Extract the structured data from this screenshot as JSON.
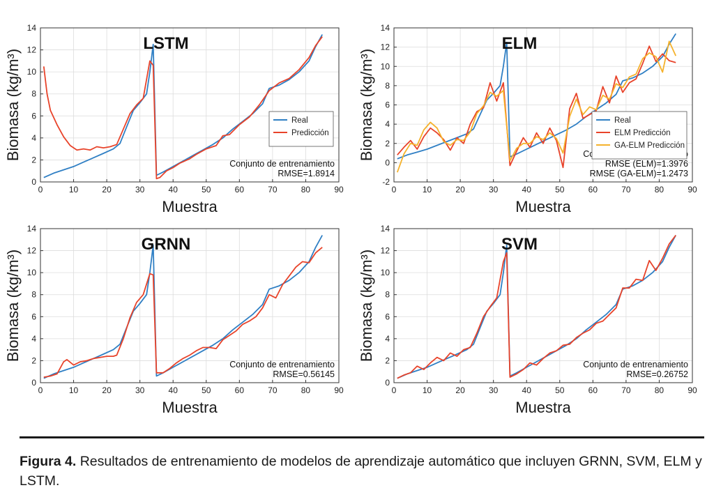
{
  "caption": {
    "label": "Figura 4.",
    "text": "Resultados de entrenamiento de modelos de aprendizaje automático que incluyen GRNN, SVM, ELM y LSTM."
  },
  "chart_data": [
    {
      "type": "line",
      "title": "LSTM",
      "xlabel": "Muestra",
      "ylabel": "Biomasa (kg/m³)",
      "xlim": [
        0,
        90
      ],
      "ylim": [
        0,
        14
      ],
      "xticks": [
        0,
        10,
        20,
        30,
        40,
        50,
        60,
        70,
        80,
        90
      ],
      "yticks": [
        0,
        2,
        4,
        6,
        8,
        10,
        12,
        14
      ],
      "grid": true,
      "legend": "middle-right",
      "annotations": [
        "Conjunto de entrenamiento",
        "RMSE=1.8914"
      ],
      "series": [
        {
          "name": "Real",
          "color": "#2f7fc4",
          "x": [
            1,
            4,
            7,
            10,
            13,
            16,
            19,
            22,
            24,
            26,
            28,
            30,
            32,
            33,
            34,
            35,
            37,
            40,
            43,
            46,
            49,
            52,
            55,
            58,
            61,
            64,
            67,
            69,
            72,
            75,
            78,
            81,
            83,
            85
          ],
          "y": [
            0.4,
            0.8,
            1.1,
            1.4,
            1.8,
            2.2,
            2.6,
            3.0,
            3.5,
            5.0,
            6.5,
            7.2,
            8.0,
            10.0,
            12.5,
            0.6,
            0.9,
            1.4,
            1.9,
            2.4,
            2.9,
            3.4,
            4.0,
            4.8,
            5.5,
            6.2,
            7.1,
            8.5,
            8.8,
            9.3,
            10.0,
            11.0,
            12.3,
            13.4
          ]
        },
        {
          "name": "Predicción",
          "color": "#e8432a",
          "x": [
            1,
            2,
            3,
            5,
            7,
            9,
            11,
            13,
            15,
            17,
            19,
            21,
            23,
            25,
            27,
            29,
            31,
            33,
            34,
            35,
            36,
            38,
            40,
            42,
            45,
            47,
            50,
            53,
            55,
            57,
            60,
            63,
            66,
            69,
            72,
            75,
            78,
            81,
            83,
            85
          ],
          "y": [
            10.5,
            8.0,
            6.5,
            5.2,
            4.1,
            3.3,
            2.9,
            3.0,
            2.9,
            3.2,
            3.1,
            3.2,
            3.4,
            4.8,
            6.2,
            7.0,
            7.6,
            11.0,
            10.6,
            0.3,
            0.4,
            1.0,
            1.3,
            1.7,
            2.1,
            2.5,
            3.0,
            3.3,
            4.2,
            4.3,
            5.2,
            5.9,
            7.0,
            8.3,
            9.0,
            9.4,
            10.2,
            11.3,
            12.4,
            13.2
          ]
        }
      ]
    },
    {
      "type": "line",
      "title": "ELM",
      "xlabel": "Muestra",
      "ylabel": "Biomasa (kg/m³)",
      "xlim": [
        0,
        90
      ],
      "ylim": [
        -2,
        14
      ],
      "xticks": [
        0,
        10,
        20,
        30,
        40,
        50,
        60,
        70,
        80,
        90
      ],
      "yticks": [
        -2,
        0,
        2,
        4,
        6,
        8,
        10,
        12,
        14
      ],
      "grid": true,
      "legend": "middle-right",
      "annotations": [
        "Conjunto de entrenamiento",
        "RMSE (ELM)=1.3976",
        "RMSE (GA-ELM)=1.2473"
      ],
      "series": [
        {
          "name": "Real",
          "color": "#2f7fc4",
          "x": [
            1,
            4,
            7,
            10,
            13,
            16,
            19,
            22,
            24,
            26,
            28,
            30,
            32,
            33,
            34,
            35,
            37,
            40,
            43,
            46,
            49,
            52,
            55,
            58,
            61,
            64,
            67,
            69,
            72,
            75,
            78,
            81,
            83,
            85
          ],
          "y": [
            0.4,
            0.8,
            1.1,
            1.4,
            1.8,
            2.2,
            2.6,
            3.0,
            3.5,
            5.0,
            6.5,
            7.2,
            8.0,
            10.0,
            12.5,
            0.6,
            0.9,
            1.4,
            1.9,
            2.4,
            2.9,
            3.4,
            4.0,
            4.8,
            5.5,
            6.2,
            7.1,
            8.5,
            8.8,
            9.3,
            10.0,
            11.0,
            12.3,
            13.4
          ]
        },
        {
          "name": "ELM Predicción",
          "color": "#e8432a",
          "x": [
            1,
            3,
            5,
            7,
            9,
            11,
            13,
            15,
            17,
            19,
            21,
            23,
            25,
            27,
            29,
            31,
            33,
            35,
            37,
            39,
            41,
            43,
            45,
            47,
            49,
            51,
            53,
            55,
            57,
            59,
            61,
            63,
            65,
            67,
            69,
            71,
            73,
            75,
            77,
            79,
            81,
            83,
            85
          ],
          "y": [
            0.8,
            1.6,
            2.3,
            1.4,
            2.7,
            3.6,
            3.1,
            2.4,
            1.3,
            2.6,
            2.0,
            4.0,
            5.3,
            5.7,
            8.3,
            6.4,
            8.3,
            -0.3,
            1.2,
            2.6,
            1.6,
            3.1,
            2.0,
            3.6,
            2.3,
            -0.5,
            5.6,
            7.2,
            4.6,
            5.0,
            5.4,
            7.9,
            6.2,
            9.0,
            7.3,
            8.3,
            8.7,
            10.3,
            12.1,
            10.5,
            11.3,
            10.6,
            10.4
          ]
        },
        {
          "name": "GA-ELM Predicción",
          "color": "#f5b22c",
          "x": [
            1,
            3,
            5,
            7,
            9,
            11,
            13,
            15,
            17,
            19,
            21,
            23,
            25,
            27,
            29,
            31,
            33,
            35,
            37,
            39,
            41,
            43,
            45,
            47,
            49,
            51,
            53,
            55,
            57,
            59,
            61,
            63,
            65,
            67,
            69,
            71,
            73,
            75,
            77,
            79,
            81,
            83,
            85
          ],
          "y": [
            -1.0,
            0.9,
            2.0,
            1.8,
            3.4,
            4.2,
            3.6,
            2.2,
            1.8,
            2.4,
            2.3,
            3.2,
            5.1,
            5.9,
            7.3,
            6.9,
            7.5,
            0.2,
            1.5,
            2.0,
            2.0,
            2.7,
            2.4,
            3.1,
            2.5,
            1.0,
            4.8,
            6.6,
            5.0,
            5.8,
            5.5,
            7.0,
            6.6,
            8.2,
            7.8,
            8.9,
            9.2,
            10.8,
            11.4,
            11.0,
            9.4,
            12.6,
            11.1
          ]
        }
      ]
    },
    {
      "type": "line",
      "title": "GRNN",
      "xlabel": "Muestra",
      "ylabel": "Biomasa (kg/m³)",
      "xlim": [
        0,
        90
      ],
      "ylim": [
        0,
        14
      ],
      "xticks": [
        0,
        10,
        20,
        30,
        40,
        50,
        60,
        70,
        80,
        90
      ],
      "yticks": [
        0,
        2,
        4,
        6,
        8,
        10,
        12,
        14
      ],
      "grid": true,
      "annotations": [
        "Conjunto de entrenamiento",
        "RMSE=0.56145"
      ],
      "series": [
        {
          "name": "Real",
          "color": "#2f7fc4",
          "x": [
            1,
            4,
            7,
            10,
            13,
            16,
            19,
            22,
            24,
            26,
            28,
            30,
            32,
            33,
            34,
            35,
            37,
            40,
            43,
            46,
            49,
            52,
            55,
            58,
            61,
            64,
            67,
            69,
            72,
            75,
            78,
            81,
            83,
            85
          ],
          "y": [
            0.4,
            0.8,
            1.1,
            1.4,
            1.8,
            2.2,
            2.6,
            3.0,
            3.5,
            5.0,
            6.5,
            7.2,
            8.0,
            10.0,
            12.5,
            0.6,
            0.9,
            1.4,
            1.9,
            2.4,
            2.9,
            3.4,
            4.0,
            4.8,
            5.5,
            6.2,
            7.1,
            8.5,
            8.8,
            9.3,
            10.0,
            11.0,
            12.3,
            13.4
          ]
        },
        {
          "name": "Predicción",
          "color": "#e8432a",
          "x": [
            1,
            3,
            5,
            7,
            8,
            10,
            12,
            14,
            16,
            18,
            20,
            22,
            23,
            25,
            27,
            29,
            31,
            33,
            34,
            35,
            37,
            39,
            41,
            43,
            45,
            47,
            49,
            51,
            53,
            55,
            57,
            59,
            61,
            63,
            65,
            67,
            69,
            71,
            73,
            75,
            77,
            79,
            81,
            83,
            85
          ],
          "y": [
            0.5,
            0.6,
            0.8,
            1.9,
            2.1,
            1.6,
            1.9,
            2.0,
            2.2,
            2.3,
            2.4,
            2.4,
            2.5,
            4.0,
            5.9,
            7.3,
            8.0,
            9.9,
            9.8,
            0.9,
            0.9,
            1.3,
            1.8,
            2.2,
            2.5,
            2.9,
            3.2,
            3.2,
            3.1,
            3.9,
            4.3,
            4.7,
            5.3,
            5.6,
            6.0,
            6.8,
            8.0,
            7.7,
            8.9,
            9.7,
            10.5,
            11.0,
            10.9,
            11.8,
            12.3
          ]
        }
      ]
    },
    {
      "type": "line",
      "title": "SVM",
      "xlabel": "Muestra",
      "ylabel": "Biomasa (kg/m³)",
      "xlim": [
        0,
        90
      ],
      "ylim": [
        0,
        14
      ],
      "xticks": [
        0,
        10,
        20,
        30,
        40,
        50,
        60,
        70,
        80,
        90
      ],
      "yticks": [
        0,
        2,
        4,
        6,
        8,
        10,
        12,
        14
      ],
      "grid": true,
      "annotations": [
        "Conjunto de entrenamiento",
        "RMSE=0.26752"
      ],
      "series": [
        {
          "name": "Real",
          "color": "#2f7fc4",
          "x": [
            1,
            4,
            7,
            10,
            13,
            16,
            19,
            22,
            24,
            26,
            28,
            30,
            32,
            33,
            34,
            35,
            37,
            40,
            43,
            46,
            49,
            52,
            55,
            58,
            61,
            64,
            67,
            69,
            72,
            75,
            78,
            81,
            83,
            85
          ],
          "y": [
            0.4,
            0.8,
            1.1,
            1.4,
            1.8,
            2.2,
            2.6,
            3.0,
            3.5,
            5.0,
            6.5,
            7.2,
            8.0,
            10.0,
            12.5,
            0.6,
            0.9,
            1.4,
            1.9,
            2.4,
            2.9,
            3.4,
            4.0,
            4.8,
            5.5,
            6.2,
            7.1,
            8.5,
            8.8,
            9.3,
            10.0,
            11.0,
            12.3,
            13.4
          ]
        },
        {
          "name": "Predicción",
          "color": "#e8432a",
          "x": [
            1,
            3,
            5,
            7,
            9,
            11,
            13,
            15,
            17,
            19,
            21,
            23,
            25,
            27,
            29,
            31,
            33,
            34,
            35,
            37,
            39,
            41,
            43,
            45,
            47,
            49,
            51,
            53,
            55,
            57,
            59,
            61,
            63,
            65,
            67,
            69,
            71,
            73,
            75,
            77,
            79,
            81,
            83,
            85
          ],
          "y": [
            0.4,
            0.7,
            0.9,
            1.5,
            1.2,
            1.8,
            2.3,
            2.0,
            2.7,
            2.4,
            3.0,
            3.2,
            4.5,
            6.0,
            6.9,
            7.7,
            11.0,
            11.8,
            0.5,
            0.8,
            1.2,
            1.8,
            1.6,
            2.2,
            2.7,
            2.9,
            3.4,
            3.5,
            4.1,
            4.5,
            4.8,
            5.4,
            5.6,
            6.2,
            6.8,
            8.6,
            8.6,
            9.4,
            9.3,
            11.1,
            10.2,
            11.3,
            12.6,
            13.4
          ]
        }
      ]
    }
  ]
}
